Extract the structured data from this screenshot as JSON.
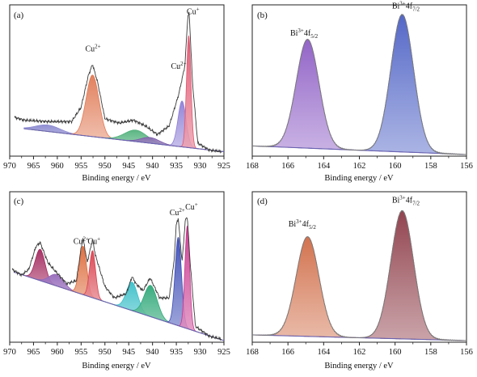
{
  "xaxis_title": "Binding energy / eV",
  "chart_data": [
    {
      "type": "area",
      "panel_label": "(a)",
      "xlabel": "Binding energy / eV",
      "xlim": [
        970,
        925
      ],
      "xticks": [
        970,
        965,
        960,
        955,
        950,
        945,
        940,
        935,
        930,
        925
      ],
      "ylim": [
        0,
        1
      ],
      "annotations": [
        {
          "sup": "Cu",
          "exp": "2+",
          "x": 952.5,
          "y": 0.72
        },
        {
          "sup": "Cu",
          "exp": "2+",
          "x": 934.5,
          "y": 0.6
        },
        {
          "sup": "Cu",
          "exp": "+",
          "x": 931.5,
          "y": 0.98
        }
      ],
      "background": [
        [
          967,
          0.18
        ],
        [
          925,
          0.02
        ]
      ],
      "raw_spectrum": [
        [
          969,
          0.26
        ],
        [
          967,
          0.24
        ],
        [
          962,
          0.23
        ],
        [
          957,
          0.23
        ],
        [
          955,
          0.33
        ],
        [
          953.5,
          0.55
        ],
        [
          952.6,
          0.63
        ],
        [
          951.5,
          0.5
        ],
        [
          950,
          0.25
        ],
        [
          947,
          0.22
        ],
        [
          944,
          0.24
        ],
        [
          941.5,
          0.2
        ],
        [
          939,
          0.14
        ],
        [
          936.5,
          0.2
        ],
        [
          934.5,
          0.42
        ],
        [
          933.2,
          0.62
        ],
        [
          932.6,
          0.96
        ],
        [
          932.3,
          0.99
        ],
        [
          931.6,
          0.5
        ],
        [
          930.5,
          0.08
        ],
        [
          928,
          0.03
        ],
        [
          925.5,
          0.02
        ]
      ],
      "series": [
        {
          "name": "Cu2+ 2p1/2 satellite",
          "color": "#8c8ad0",
          "center": 962.0,
          "fwhm": 6.0,
          "height": 0.045
        },
        {
          "name": "Cu2+ 2p1/2",
          "color": "#e07a55",
          "center": 952.6,
          "fwhm": 3.2,
          "height": 0.43
        },
        {
          "name": "Cu2+ 2p3/2 satellite",
          "color": "#4fb07a",
          "center": 943.5,
          "fwhm": 5.5,
          "height": 0.08
        },
        {
          "name": "Cu2+ 2p3/2 satellite 2",
          "color": "#7a5aa8",
          "center": 940.5,
          "fwhm": 4.5,
          "height": 0.04
        },
        {
          "name": "Cu2+ 2p3/2",
          "color": "#8f7fd6",
          "center": 933.8,
          "fwhm": 2.0,
          "height": 0.32
        },
        {
          "name": "Cu+ 2p3/2",
          "color": "#e0566f",
          "center": 932.4,
          "fwhm": 1.1,
          "height": 0.78
        }
      ]
    },
    {
      "type": "area",
      "panel_label": "(b)",
      "xlabel": "Binding energy / eV",
      "xlim": [
        168,
        156
      ],
      "xticks": [
        168,
        166,
        164,
        162,
        160,
        158,
        156
      ],
      "ylim": [
        0,
        1
      ],
      "annotations": [
        {
          "sup": "Bi",
          "exp": "3+",
          "tail": "4f",
          "sub": "5/2",
          "x": 165.1,
          "y": 0.83
        },
        {
          "sup": "Bi",
          "exp": "3+",
          "tail": "4f",
          "sub": "7/2",
          "x": 159.4,
          "y": 1.02
        }
      ],
      "background": [
        [
          168,
          0.06
        ],
        [
          156,
          0.0
        ]
      ],
      "series": [
        {
          "name": "Bi3+ 4f5/2",
          "color": "#8c5cc4",
          "center": 164.9,
          "fwhm": 1.5,
          "height": 0.76
        },
        {
          "name": "Bi3+ 4f7/2",
          "color": "#4b5fc4",
          "center": 159.6,
          "fwhm": 1.5,
          "height": 0.96
        }
      ]
    },
    {
      "type": "area",
      "panel_label": "(c)",
      "xlabel": "Binding energy / eV",
      "xlim": [
        970,
        925
      ],
      "xticks": [
        970,
        965,
        960,
        955,
        950,
        945,
        940,
        935,
        930,
        925
      ],
      "ylim": [
        0,
        1
      ],
      "annotations": [
        {
          "sup": "Cu",
          "exp": "2+",
          "x": 955.0,
          "y": 0.68
        },
        {
          "sup": "Cu",
          "exp": "+",
          "x": 952.3,
          "y": 0.68
        },
        {
          "sup": "Cu",
          "exp": "2+",
          "x": 934.8,
          "y": 0.88
        },
        {
          "sup": "Cu",
          "exp": "+",
          "x": 931.8,
          "y": 0.92
        }
      ],
      "background": [
        [
          969,
          0.48
        ],
        [
          925,
          0.0
        ]
      ],
      "raw_spectrum": [
        [
          969.5,
          0.5
        ],
        [
          967.5,
          0.46
        ],
        [
          966,
          0.5
        ],
        [
          964.5,
          0.66
        ],
        [
          963.6,
          0.69
        ],
        [
          962,
          0.55
        ],
        [
          960.5,
          0.49
        ],
        [
          958,
          0.4
        ],
        [
          956,
          0.42
        ],
        [
          955,
          0.65
        ],
        [
          954.6,
          0.72
        ],
        [
          953.7,
          0.55
        ],
        [
          952.6,
          0.71
        ],
        [
          952,
          0.6
        ],
        [
          950,
          0.38
        ],
        [
          948,
          0.3
        ],
        [
          945.5,
          0.33
        ],
        [
          944.3,
          0.45
        ],
        [
          943.5,
          0.4
        ],
        [
          942,
          0.35
        ],
        [
          940.5,
          0.44
        ],
        [
          938.5,
          0.3
        ],
        [
          936.5,
          0.3
        ],
        [
          935.5,
          0.55
        ],
        [
          935,
          0.82
        ],
        [
          934.6,
          0.86
        ],
        [
          933.8,
          0.55
        ],
        [
          933.1,
          0.85
        ],
        [
          932.7,
          0.87
        ],
        [
          932.1,
          0.55
        ],
        [
          931,
          0.1
        ],
        [
          928,
          0.03
        ],
        [
          925.5,
          0.01
        ]
      ],
      "series": [
        {
          "name": "Cu 2p1/2 satellite",
          "color": "#a3295e",
          "center": 963.6,
          "fwhm": 2.4,
          "height": 0.22
        },
        {
          "name": "Cu 2p1/2 satellite 2",
          "color": "#9366b8",
          "center": 960.2,
          "fwhm": 3.6,
          "height": 0.08
        },
        {
          "name": "Cu2+ 2p1/2",
          "color": "#dc6a3a",
          "center": 954.6,
          "fwhm": 1.8,
          "height": 0.34
        },
        {
          "name": "Cu+ 2p1/2",
          "color": "#d9434f",
          "center": 952.6,
          "fwhm": 1.5,
          "height": 0.33
        },
        {
          "name": "Cu 2p3/2 satellite",
          "color": "#3cbfc8",
          "center": 944.3,
          "fwhm": 2.8,
          "height": 0.2
        },
        {
          "name": "Cu 2p3/2 satellite 2",
          "color": "#2fa878",
          "center": 940.4,
          "fwhm": 3.2,
          "height": 0.22
        },
        {
          "name": "Cu2+ 2p3/2",
          "color": "#3b4bb5",
          "center": 934.6,
          "fwhm": 1.6,
          "height": 0.62
        },
        {
          "name": "Cu+ 2p3/2",
          "color": "#c9388f",
          "center": 932.7,
          "fwhm": 1.2,
          "height": 0.72
        }
      ]
    },
    {
      "type": "area",
      "panel_label": "(d)",
      "xlabel": "Binding energy / eV",
      "xlim": [
        168,
        156
      ],
      "xticks": [
        168,
        166,
        164,
        162,
        160,
        158,
        156
      ],
      "ylim": [
        0,
        1
      ],
      "annotations": [
        {
          "sup": "Bi",
          "exp": "3+",
          "tail": "4f",
          "sub": "5/2",
          "x": 165.2,
          "y": 0.8
        },
        {
          "sup": "Bi",
          "exp": "3+",
          "tail": "4f",
          "sub": "7/2",
          "x": 159.4,
          "y": 0.97
        }
      ],
      "background": [
        [
          168,
          0.04
        ],
        [
          156,
          0.0
        ]
      ],
      "series": [
        {
          "name": "Bi3+ 4f5/2",
          "color": "#d06b45",
          "center": 164.9,
          "fwhm": 1.5,
          "height": 0.7
        },
        {
          "name": "Bi3+ 4f7/2",
          "color": "#8c3a46",
          "center": 159.6,
          "fwhm": 1.5,
          "height": 0.9
        }
      ]
    }
  ]
}
